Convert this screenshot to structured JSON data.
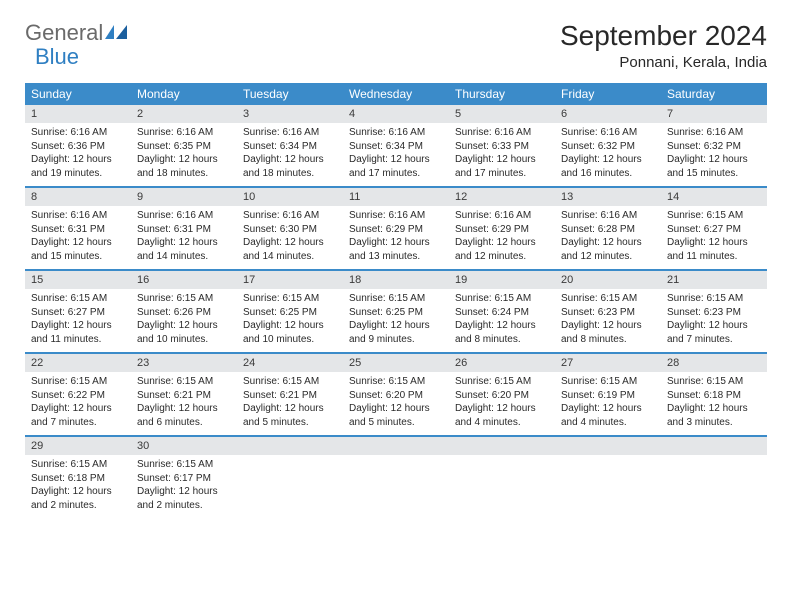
{
  "logo": {
    "text1": "General",
    "text2": "Blue"
  },
  "title": "September 2024",
  "location": "Ponnani, Kerala, India",
  "colors": {
    "header_bg": "#3b8bc9",
    "header_text": "#ffffff",
    "daynum_bg": "#e4e6e8",
    "text": "#2a2a2a"
  },
  "day_names": [
    "Sunday",
    "Monday",
    "Tuesday",
    "Wednesday",
    "Thursday",
    "Friday",
    "Saturday"
  ],
  "weeks": [
    [
      {
        "n": "1",
        "lines": [
          "Sunrise: 6:16 AM",
          "Sunset: 6:36 PM",
          "Daylight: 12 hours and 19 minutes."
        ]
      },
      {
        "n": "2",
        "lines": [
          "Sunrise: 6:16 AM",
          "Sunset: 6:35 PM",
          "Daylight: 12 hours and 18 minutes."
        ]
      },
      {
        "n": "3",
        "lines": [
          "Sunrise: 6:16 AM",
          "Sunset: 6:34 PM",
          "Daylight: 12 hours and 18 minutes."
        ]
      },
      {
        "n": "4",
        "lines": [
          "Sunrise: 6:16 AM",
          "Sunset: 6:34 PM",
          "Daylight: 12 hours and 17 minutes."
        ]
      },
      {
        "n": "5",
        "lines": [
          "Sunrise: 6:16 AM",
          "Sunset: 6:33 PM",
          "Daylight: 12 hours and 17 minutes."
        ]
      },
      {
        "n": "6",
        "lines": [
          "Sunrise: 6:16 AM",
          "Sunset: 6:32 PM",
          "Daylight: 12 hours and 16 minutes."
        ]
      },
      {
        "n": "7",
        "lines": [
          "Sunrise: 6:16 AM",
          "Sunset: 6:32 PM",
          "Daylight: 12 hours and 15 minutes."
        ]
      }
    ],
    [
      {
        "n": "8",
        "lines": [
          "Sunrise: 6:16 AM",
          "Sunset: 6:31 PM",
          "Daylight: 12 hours and 15 minutes."
        ]
      },
      {
        "n": "9",
        "lines": [
          "Sunrise: 6:16 AM",
          "Sunset: 6:31 PM",
          "Daylight: 12 hours and 14 minutes."
        ]
      },
      {
        "n": "10",
        "lines": [
          "Sunrise: 6:16 AM",
          "Sunset: 6:30 PM",
          "Daylight: 12 hours and 14 minutes."
        ]
      },
      {
        "n": "11",
        "lines": [
          "Sunrise: 6:16 AM",
          "Sunset: 6:29 PM",
          "Daylight: 12 hours and 13 minutes."
        ]
      },
      {
        "n": "12",
        "lines": [
          "Sunrise: 6:16 AM",
          "Sunset: 6:29 PM",
          "Daylight: 12 hours and 12 minutes."
        ]
      },
      {
        "n": "13",
        "lines": [
          "Sunrise: 6:16 AM",
          "Sunset: 6:28 PM",
          "Daylight: 12 hours and 12 minutes."
        ]
      },
      {
        "n": "14",
        "lines": [
          "Sunrise: 6:15 AM",
          "Sunset: 6:27 PM",
          "Daylight: 12 hours and 11 minutes."
        ]
      }
    ],
    [
      {
        "n": "15",
        "lines": [
          "Sunrise: 6:15 AM",
          "Sunset: 6:27 PM",
          "Daylight: 12 hours and 11 minutes."
        ]
      },
      {
        "n": "16",
        "lines": [
          "Sunrise: 6:15 AM",
          "Sunset: 6:26 PM",
          "Daylight: 12 hours and 10 minutes."
        ]
      },
      {
        "n": "17",
        "lines": [
          "Sunrise: 6:15 AM",
          "Sunset: 6:25 PM",
          "Daylight: 12 hours and 10 minutes."
        ]
      },
      {
        "n": "18",
        "lines": [
          "Sunrise: 6:15 AM",
          "Sunset: 6:25 PM",
          "Daylight: 12 hours and 9 minutes."
        ]
      },
      {
        "n": "19",
        "lines": [
          "Sunrise: 6:15 AM",
          "Sunset: 6:24 PM",
          "Daylight: 12 hours and 8 minutes."
        ]
      },
      {
        "n": "20",
        "lines": [
          "Sunrise: 6:15 AM",
          "Sunset: 6:23 PM",
          "Daylight: 12 hours and 8 minutes."
        ]
      },
      {
        "n": "21",
        "lines": [
          "Sunrise: 6:15 AM",
          "Sunset: 6:23 PM",
          "Daylight: 12 hours and 7 minutes."
        ]
      }
    ],
    [
      {
        "n": "22",
        "lines": [
          "Sunrise: 6:15 AM",
          "Sunset: 6:22 PM",
          "Daylight: 12 hours and 7 minutes."
        ]
      },
      {
        "n": "23",
        "lines": [
          "Sunrise: 6:15 AM",
          "Sunset: 6:21 PM",
          "Daylight: 12 hours and 6 minutes."
        ]
      },
      {
        "n": "24",
        "lines": [
          "Sunrise: 6:15 AM",
          "Sunset: 6:21 PM",
          "Daylight: 12 hours and 5 minutes."
        ]
      },
      {
        "n": "25",
        "lines": [
          "Sunrise: 6:15 AM",
          "Sunset: 6:20 PM",
          "Daylight: 12 hours and 5 minutes."
        ]
      },
      {
        "n": "26",
        "lines": [
          "Sunrise: 6:15 AM",
          "Sunset: 6:20 PM",
          "Daylight: 12 hours and 4 minutes."
        ]
      },
      {
        "n": "27",
        "lines": [
          "Sunrise: 6:15 AM",
          "Sunset: 6:19 PM",
          "Daylight: 12 hours and 4 minutes."
        ]
      },
      {
        "n": "28",
        "lines": [
          "Sunrise: 6:15 AM",
          "Sunset: 6:18 PM",
          "Daylight: 12 hours and 3 minutes."
        ]
      }
    ],
    [
      {
        "n": "29",
        "lines": [
          "Sunrise: 6:15 AM",
          "Sunset: 6:18 PM",
          "Daylight: 12 hours and 2 minutes."
        ]
      },
      {
        "n": "30",
        "lines": [
          "Sunrise: 6:15 AM",
          "Sunset: 6:17 PM",
          "Daylight: 12 hours and 2 minutes."
        ]
      },
      {
        "n": "",
        "lines": []
      },
      {
        "n": "",
        "lines": []
      },
      {
        "n": "",
        "lines": []
      },
      {
        "n": "",
        "lines": []
      },
      {
        "n": "",
        "lines": []
      }
    ]
  ]
}
